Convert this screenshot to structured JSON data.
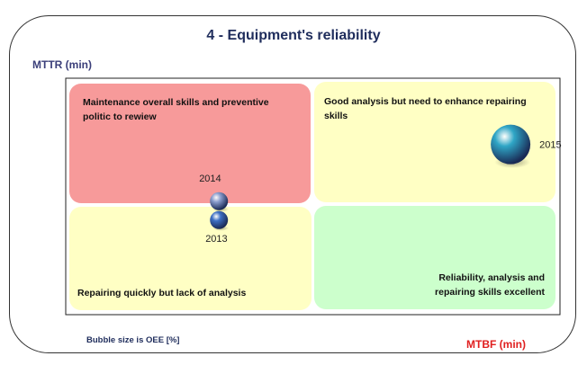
{
  "chart_data": {
    "type": "scatter",
    "title": "4 - Equipment's reliability",
    "xlabel": "MTBF (min)",
    "ylabel": "MTTR (min)",
    "bubble_size_note": "Bubble size is OEE [%]",
    "quadrants": [
      {
        "id": "top-left",
        "text": [
          "Maintenance overall skills and preventive",
          "politic to rewiew"
        ],
        "color": "#f79a9a"
      },
      {
        "id": "top-right",
        "text": [
          "Good analysis but need to enhance repairing",
          "skills"
        ],
        "color": "#ffffc4"
      },
      {
        "id": "bottom-left",
        "text": [
          "Repairing quickly but lack of analysis"
        ],
        "color": "#ffffc4"
      },
      {
        "id": "bottom-right",
        "text": [
          "Reliability, analysis and",
          "repairing skills excellent"
        ],
        "color": "#ccffcc"
      }
    ],
    "points": [
      {
        "label": "2013",
        "x": 0.31,
        "y": 0.4,
        "size": 1.0,
        "color": "#3d6fc4"
      },
      {
        "label": "2014",
        "x": 0.31,
        "y": 0.48,
        "size": 1.0,
        "color": "#8c9fcf"
      },
      {
        "label": "2015",
        "x": 0.9,
        "y": 0.72,
        "size": 2.2,
        "color": "#2fa6c6"
      }
    ]
  }
}
